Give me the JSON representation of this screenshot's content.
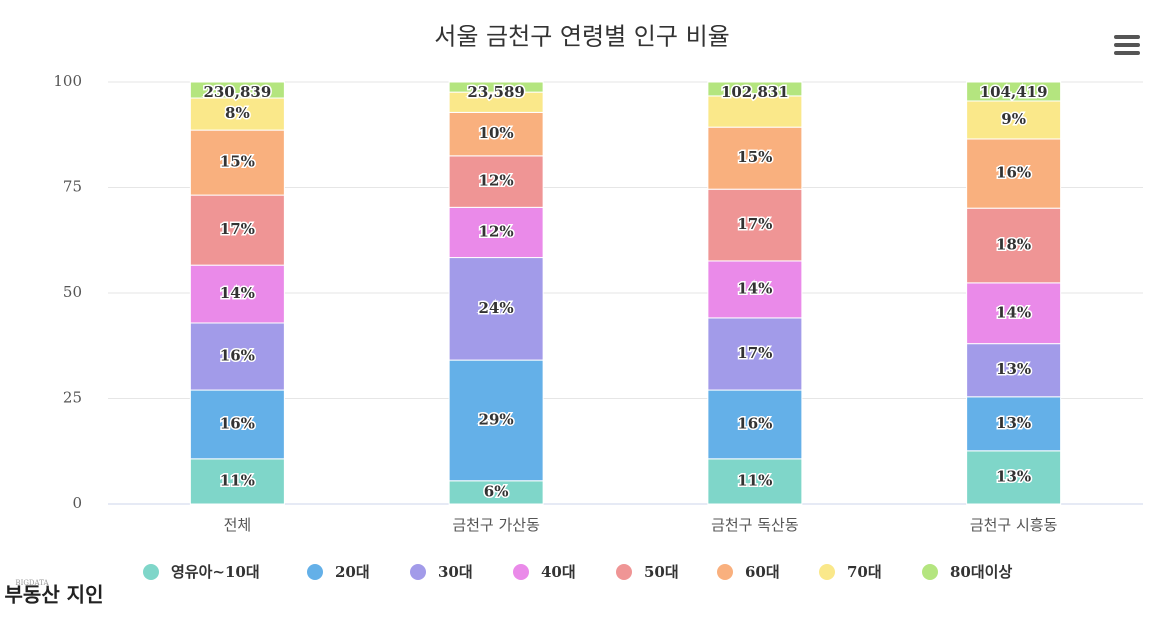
{
  "chart_data": {
    "type": "stacked-bar",
    "title": "서울 금천구 연령별 인구 비율",
    "categories": [
      "전체",
      "금천구 가산동",
      "금천구 독산동",
      "금천구 시흥동"
    ],
    "ylim": [
      0,
      100
    ],
    "yticks": [
      0,
      25,
      50,
      75,
      100
    ],
    "grid": true,
    "series": [
      {
        "name": "영유아~10대",
        "color": "#7fd6c9",
        "values": [
          10.7,
          5.5,
          10.7,
          12.6
        ],
        "value_labels": [
          "11%",
          "6%",
          "11%",
          "13%"
        ]
      },
      {
        "name": "20대",
        "color": "#64b0e8",
        "values": [
          16.3,
          28.6,
          16.3,
          12.8
        ],
        "value_labels": [
          "16%",
          "29%",
          "16%",
          "13%"
        ]
      },
      {
        "name": "30대",
        "color": "#a29be9",
        "values": [
          15.9,
          24.3,
          17.1,
          12.6
        ],
        "value_labels": [
          "16%",
          "24%",
          "17%",
          "13%"
        ]
      },
      {
        "name": "40대",
        "color": "#ea8ae9",
        "values": [
          13.7,
          11.9,
          13.5,
          14.4
        ],
        "value_labels": [
          "14%",
          "12%",
          "14%",
          "14%"
        ]
      },
      {
        "name": "50대",
        "color": "#ef9595",
        "values": [
          16.6,
          12.2,
          17.0,
          17.7
        ],
        "value_labels": [
          "17%",
          "12%",
          "17%",
          "18%"
        ]
      },
      {
        "name": "60대",
        "color": "#f9b07e",
        "values": [
          15.4,
          10.3,
          14.7,
          16.4
        ],
        "value_labels": [
          "15%",
          "10%",
          "15%",
          "16%"
        ]
      },
      {
        "name": "70대",
        "color": "#fae88a",
        "values": [
          7.6,
          4.8,
          7.4,
          9.0
        ],
        "value_labels": [
          "8%",
          null,
          null,
          "9%"
        ]
      },
      {
        "name": "80대이상",
        "color": "#b4e57f",
        "values": [
          3.8,
          2.4,
          3.3,
          4.5
        ],
        "value_labels": [
          null,
          null,
          null,
          null
        ]
      }
    ],
    "stack_total_labels": [
      "230,839",
      "23,589",
      "102,831",
      "104,419"
    ]
  },
  "logo": {
    "small": "BIGDATA",
    "text": "부동산 지인"
  }
}
